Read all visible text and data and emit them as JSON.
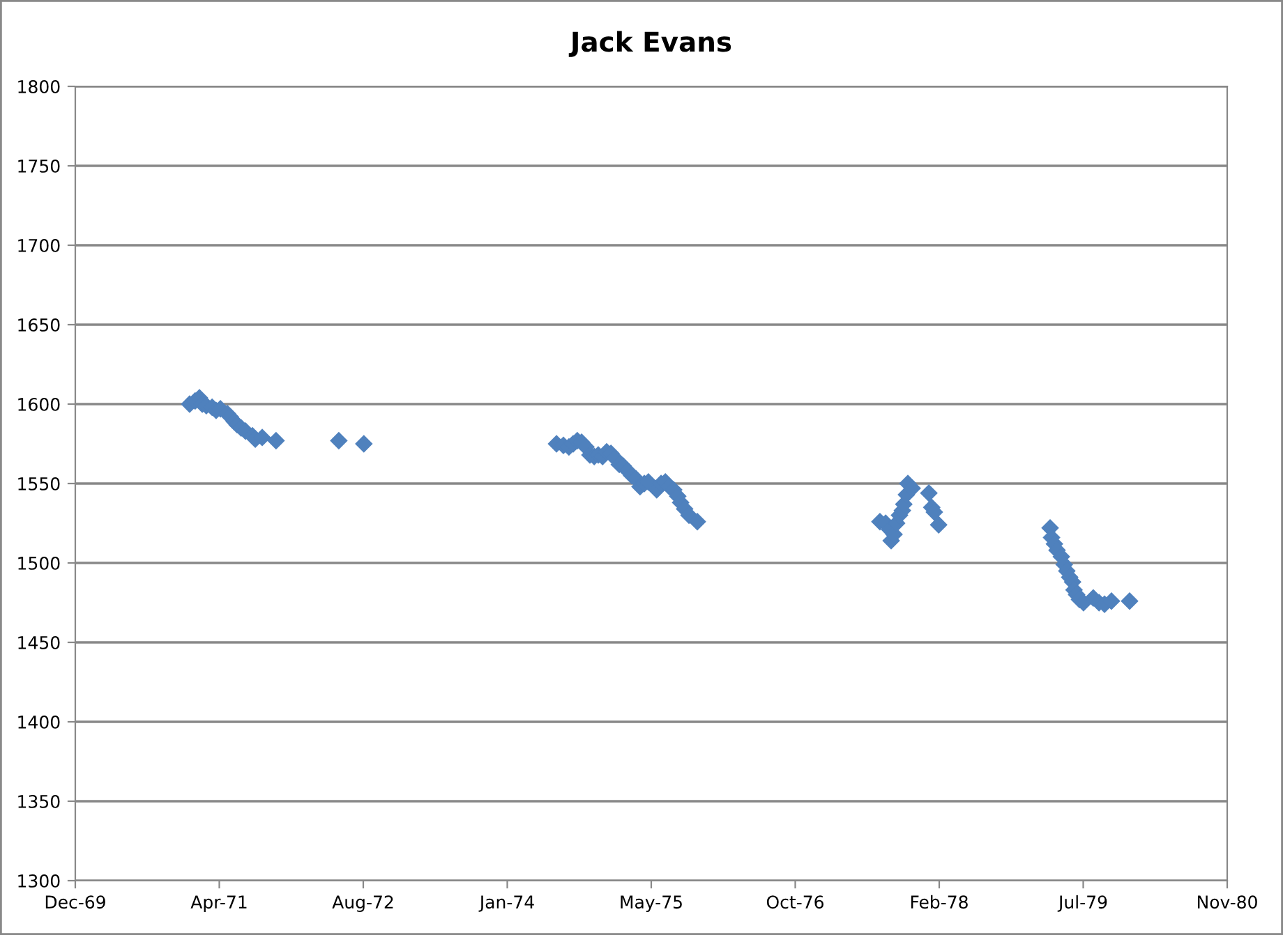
{
  "chart_data": {
    "type": "scatter",
    "title": "Jack Evans",
    "x": [
      "1971-01-04",
      "1971-01-23",
      "1971-02-07",
      "1971-02-17",
      "1971-03-03",
      "1971-03-23",
      "1971-04-06",
      "1971-04-21",
      "1971-05-15",
      "1971-05-25",
      "1971-06-08",
      "1971-06-18",
      "1971-07-02",
      "1971-07-17",
      "1971-08-10",
      "1971-08-20",
      "1971-09-13",
      "1971-10-31",
      "1972-06-05",
      "1972-08-31",
      "1974-07-01",
      "1974-07-25",
      "1974-08-13",
      "1974-08-28",
      "1974-09-11",
      "1974-09-26",
      "1974-10-11",
      "1974-10-25",
      "1974-11-09",
      "1974-11-23",
      "1974-12-08",
      "1974-12-22",
      "1975-01-06",
      "1975-01-20",
      "1975-02-04",
      "1975-02-18",
      "1975-03-05",
      "1975-03-19",
      "1975-04-03",
      "1975-04-17",
      "1975-05-02",
      "1975-05-16",
      "1975-06-14",
      "1975-06-29",
      "1975-07-14",
      "1975-07-28",
      "1975-08-12",
      "1975-08-26",
      "1975-09-05",
      "1975-09-19",
      "1975-10-04",
      "1975-11-02",
      "1977-07-28",
      "1977-08-17",
      "1977-08-31",
      "1977-09-05",
      "1977-09-15",
      "1977-09-24",
      "1977-10-04",
      "1977-10-14",
      "1977-10-19",
      "1977-10-28",
      "1977-11-02",
      "1977-11-17",
      "1978-01-14",
      "1978-01-24",
      "1978-02-02",
      "1978-02-17",
      "1979-03-11",
      "1979-03-16",
      "1979-03-26",
      "1979-04-04",
      "1979-04-19",
      "1979-04-29",
      "1979-05-08",
      "1979-05-18",
      "1979-05-28",
      "1979-06-02",
      "1979-06-11",
      "1979-06-21",
      "1979-07-05",
      "1979-08-08",
      "1979-08-28",
      "1979-09-16",
      "1979-10-10",
      "1979-12-12"
    ],
    "values": [
      1600,
      1602,
      1604,
      1600,
      1599,
      1598,
      1596,
      1597,
      1594,
      1592,
      1589,
      1587,
      1585,
      1583,
      1580,
      1578,
      1579,
      1577,
      1577,
      1575,
      1575,
      1574,
      1573,
      1575,
      1577,
      1576,
      1573,
      1568,
      1567,
      1568,
      1567,
      1570,
      1569,
      1566,
      1562,
      1561,
      1558,
      1555,
      1553,
      1548,
      1550,
      1551,
      1546,
      1550,
      1551,
      1548,
      1546,
      1542,
      1538,
      1534,
      1530,
      1526,
      1526,
      1525,
      1521,
      1514,
      1518,
      1525,
      1530,
      1533,
      1537,
      1543,
      1550,
      1547,
      1544,
      1535,
      1532,
      1524,
      1522,
      1516,
      1512,
      1508,
      1504,
      1499,
      1495,
      1491,
      1488,
      1483,
      1480,
      1477,
      1475,
      1478,
      1475,
      1474,
      1476,
      1476
    ],
    "color": "#4f81bd",
    "marker": "diamond",
    "xlim": [
      "1969-12-03",
      "1980-11-15"
    ],
    "xticks": [
      {
        "value": "1969-12-03",
        "label": "Dec-69"
      },
      {
        "value": "1971-04-17",
        "label": "Apr-71"
      },
      {
        "value": "1972-08-29",
        "label": "Aug-72"
      },
      {
        "value": "1974-01-11",
        "label": "Jan-74"
      },
      {
        "value": "1975-05-26",
        "label": "May-75"
      },
      {
        "value": "1976-10-07",
        "label": "Oct-76"
      },
      {
        "value": "1978-02-19",
        "label": "Feb-78"
      },
      {
        "value": "1979-07-04",
        "label": "Jul-79"
      },
      {
        "value": "1980-11-15",
        "label": "Nov-80"
      }
    ],
    "ylim": [
      1300,
      1800
    ],
    "yticks": [
      1300,
      1350,
      1400,
      1450,
      1500,
      1550,
      1600,
      1650,
      1700,
      1750,
      1800
    ],
    "grid": "y",
    "legend": false
  }
}
